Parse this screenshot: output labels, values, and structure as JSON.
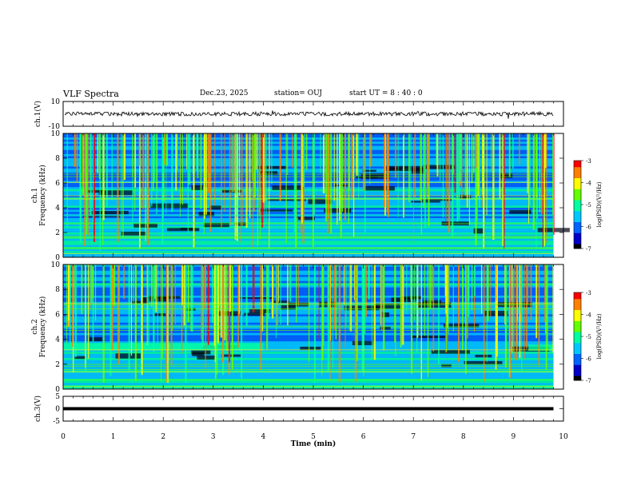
{
  "header": {
    "title": "VLF Spectra",
    "date": "Dec.23, 2025",
    "station": "station= OUJ",
    "start_ut": "start  UT =   8 : 40 : 0"
  },
  "chart_data": [
    {
      "type": "line",
      "panel": "waveform-ch1",
      "ylabel": "ch.1(V)",
      "yticks": [
        "10",
        "-10"
      ],
      "ylim": [
        -10,
        10
      ],
      "color": "#000000"
    },
    {
      "type": "heatmap",
      "panel": "spectrogram-ch1",
      "ylabel": "ch.1\nFrequency (kHz)",
      "yticks": [
        "0",
        "2",
        "4",
        "6",
        "8",
        "10"
      ],
      "ylim": [
        0,
        10
      ],
      "colorbar": {
        "label": "log(PSD)(V²/Hz)",
        "ticks": [
          "-3",
          "-4",
          "-5",
          "-6",
          "-7"
        ],
        "range": [
          -7,
          -3
        ]
      }
    },
    {
      "type": "heatmap",
      "panel": "spectrogram-ch2",
      "ylabel": "ch.2\nFrequency (kHz)",
      "yticks": [
        "0",
        "2",
        "4",
        "6",
        "8",
        "10"
      ],
      "ylim": [
        0,
        10
      ],
      "colorbar": {
        "label": "log(PSD)(V²/Hz)",
        "ticks": [
          "-3",
          "-4",
          "-5",
          "-6",
          "-7"
        ],
        "range": [
          -7,
          -3
        ]
      }
    },
    {
      "type": "line",
      "panel": "waveform-ch3",
      "ylabel": "ch.3(V)",
      "yticks": [
        "5",
        "0",
        "-5"
      ],
      "ylim": [
        -5,
        5
      ],
      "x": [
        0,
        9.8
      ],
      "y": [
        0,
        0
      ],
      "color": "#000000"
    }
  ],
  "xaxis": {
    "label": "Time (min)",
    "ticks": [
      "0",
      "1",
      "2",
      "3",
      "4",
      "5",
      "6",
      "7",
      "8",
      "9",
      "10"
    ],
    "xlim": [
      0,
      10
    ]
  },
  "colors": {
    "spectro_cmap": [
      "#000000",
      "#0000c8",
      "#0064ff",
      "#00c8ff",
      "#00ffa0",
      "#64ff00",
      "#ffff00",
      "#ff8000",
      "#ff0000",
      "#ffffff"
    ]
  }
}
